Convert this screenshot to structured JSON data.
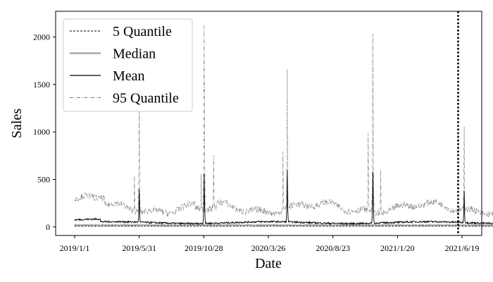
{
  "chart_data": {
    "type": "line",
    "title": "",
    "xlabel": "Date",
    "ylabel": "Sales",
    "x_start": "2019/1/1",
    "x_end": "2022/1/1",
    "ylim": [
      -90,
      2270
    ],
    "grid": false,
    "legend_position": "top-left",
    "x_tick_labels": [
      "2019/1/1",
      "2019/5/31",
      "2019/10/28",
      "2020/3/26",
      "2020/8/23",
      "2021/1/20",
      "2021/6/19",
      ""
    ],
    "y_ticks": [
      0,
      500,
      1000,
      1500,
      2000
    ],
    "vertical_marker": {
      "x": "2021/6/10",
      "style": "dotted"
    },
    "series": [
      {
        "name": "5 Quantile",
        "style": "dashed",
        "color": "#000000",
        "base": 8,
        "spikes": []
      },
      {
        "name": "Median",
        "style": "solid-thick",
        "color": "#b0b0b0",
        "base": 18,
        "spikes": []
      },
      {
        "name": "Mean",
        "style": "solid",
        "color": "#000000",
        "base": 45,
        "spikes": [
          {
            "x": "2019/5/31",
            "y": 400
          },
          {
            "x": "2019/10/29",
            "y": 560
          },
          {
            "x": "2020/5/9",
            "y": 600
          },
          {
            "x": "2020/11/24",
            "y": 580
          },
          {
            "x": "2021/6/24",
            "y": 380
          }
        ]
      },
      {
        "name": "95 Quantile",
        "style": "dashdot",
        "color": "#7a7a7a",
        "base": 200,
        "spikes": [
          {
            "x": "2019/5/20",
            "y": 540
          },
          {
            "x": "2019/5/31",
            "y": 1440
          },
          {
            "x": "2019/10/22",
            "y": 560
          },
          {
            "x": "2019/10/29",
            "y": 2140
          },
          {
            "x": "2019/11/20",
            "y": 750
          },
          {
            "x": "2020/4/29",
            "y": 790
          },
          {
            "x": "2020/5/9",
            "y": 1660
          },
          {
            "x": "2020/11/13",
            "y": 990
          },
          {
            "x": "2020/11/24",
            "y": 2030
          },
          {
            "x": "2020/12/12",
            "y": 600
          },
          {
            "x": "2021/6/24",
            "y": 1060
          }
        ]
      }
    ]
  }
}
